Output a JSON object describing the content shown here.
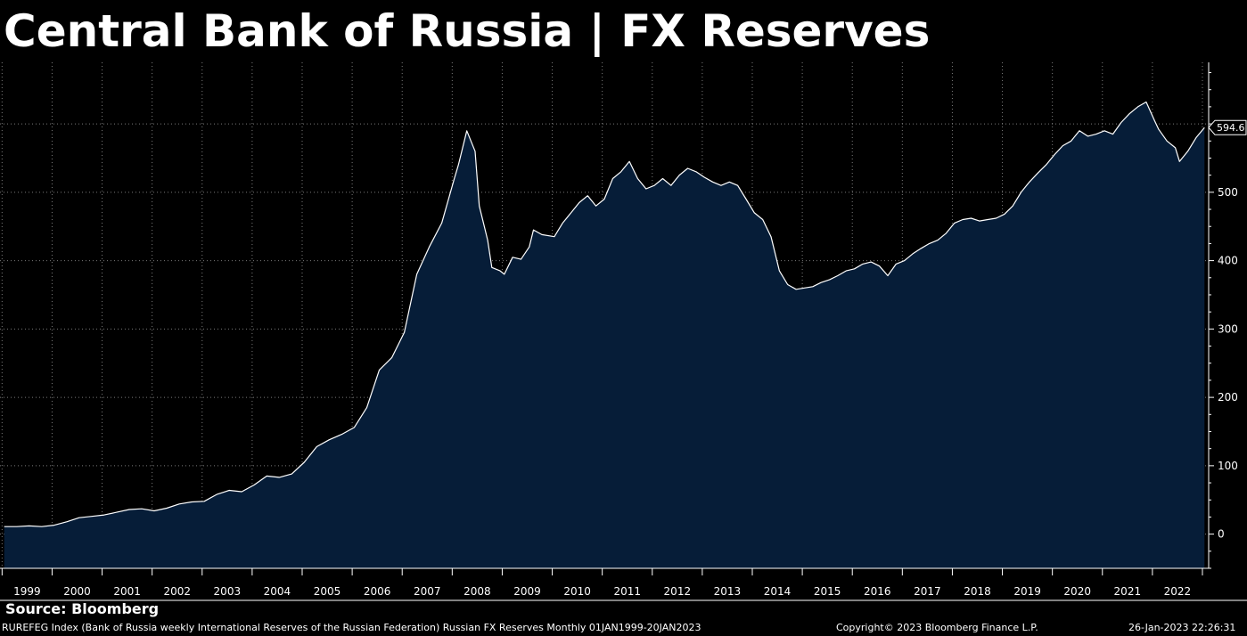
{
  "title": "Central Bank of Russia | FX Reserves",
  "source": "Source: Bloomberg",
  "footer": {
    "description": "RUREFEG Index (Bank of Russia weekly International Reserves of the Russian Federation) Russian FX Reserves  Monthly 01JAN1999-20JAN2023",
    "copyright": "Copyright© 2023 Bloomberg Finance L.P.",
    "datetime": "26-Jan-2023 22:26:31"
  },
  "colors": {
    "background": "#000000",
    "area_fill": "#061d38",
    "line": "#ffffff",
    "grid": "#7a7a7a",
    "text": "#ffffff"
  },
  "chart_data": {
    "type": "area",
    "title": "",
    "xlabel": "",
    "ylabel": "",
    "ylim": [
      -50,
      690
    ],
    "xlim": [
      "1998-12",
      "2023-02"
    ],
    "y_ticks": [
      0,
      100,
      200,
      300,
      400,
      500
    ],
    "x_tick_labels": [
      "1999",
      "2000",
      "2001",
      "2002",
      "2003",
      "2004",
      "2005",
      "2006",
      "2007",
      "2008",
      "2009",
      "2010",
      "2011",
      "2012",
      "2013",
      "2014",
      "2015",
      "2016",
      "2017",
      "2018",
      "2019",
      "2020",
      "2021",
      "2022"
    ],
    "grid": true,
    "axis_side": "right",
    "last_value_label": "594.6",
    "series": [
      {
        "points": [
          [
            "1999-01",
            11
          ],
          [
            "1999-04",
            11
          ],
          [
            "1999-07",
            12
          ],
          [
            "1999-10",
            11
          ],
          [
            "2000-01",
            13
          ],
          [
            "2000-04",
            18
          ],
          [
            "2000-07",
            24
          ],
          [
            "2000-10",
            26
          ],
          [
            "2001-01",
            28
          ],
          [
            "2001-04",
            32
          ],
          [
            "2001-07",
            36
          ],
          [
            "2001-10",
            37
          ],
          [
            "2002-01",
            34
          ],
          [
            "2002-04",
            38
          ],
          [
            "2002-07",
            44
          ],
          [
            "2002-10",
            47
          ],
          [
            "2003-01",
            48
          ],
          [
            "2003-04",
            58
          ],
          [
            "2003-07",
            64
          ],
          [
            "2003-10",
            62
          ],
          [
            "2004-01",
            72
          ],
          [
            "2004-04",
            85
          ],
          [
            "2004-07",
            83
          ],
          [
            "2004-10",
            88
          ],
          [
            "2005-01",
            105
          ],
          [
            "2005-04",
            128
          ],
          [
            "2005-07",
            138
          ],
          [
            "2005-10",
            146
          ],
          [
            "2006-01",
            156
          ],
          [
            "2006-04",
            185
          ],
          [
            "2006-07",
            240
          ],
          [
            "2006-10",
            258
          ],
          [
            "2007-01",
            295
          ],
          [
            "2007-04",
            380
          ],
          [
            "2007-07",
            420
          ],
          [
            "2007-10",
            455
          ],
          [
            "2008-01",
            520
          ],
          [
            "2008-02",
            540
          ],
          [
            "2008-04",
            590
          ],
          [
            "2008-06",
            560
          ],
          [
            "2008-07",
            480
          ],
          [
            "2008-09",
            430
          ],
          [
            "2008-10",
            390
          ],
          [
            "2008-12",
            385
          ],
          [
            "2009-01",
            380
          ],
          [
            "2009-03",
            405
          ],
          [
            "2009-05",
            402
          ],
          [
            "2009-07",
            420
          ],
          [
            "2009-08",
            445
          ],
          [
            "2009-10",
            438
          ],
          [
            "2010-01",
            435
          ],
          [
            "2010-03",
            455
          ],
          [
            "2010-05",
            470
          ],
          [
            "2010-07",
            485
          ],
          [
            "2010-09",
            495
          ],
          [
            "2010-11",
            480
          ],
          [
            "2011-01",
            490
          ],
          [
            "2011-03",
            520
          ],
          [
            "2011-05",
            530
          ],
          [
            "2011-07",
            545
          ],
          [
            "2011-09",
            520
          ],
          [
            "2011-11",
            505
          ],
          [
            "2012-01",
            510
          ],
          [
            "2012-03",
            520
          ],
          [
            "2012-05",
            510
          ],
          [
            "2012-07",
            525
          ],
          [
            "2012-09",
            535
          ],
          [
            "2012-11",
            530
          ],
          [
            "2013-01",
            522
          ],
          [
            "2013-03",
            515
          ],
          [
            "2013-05",
            510
          ],
          [
            "2013-07",
            515
          ],
          [
            "2013-09",
            510
          ],
          [
            "2013-11",
            490
          ],
          [
            "2014-01",
            470
          ],
          [
            "2014-03",
            460
          ],
          [
            "2014-05",
            435
          ],
          [
            "2014-07",
            385
          ],
          [
            "2014-09",
            365
          ],
          [
            "2014-11",
            358
          ],
          [
            "2015-01",
            360
          ],
          [
            "2015-03",
            362
          ],
          [
            "2015-05",
            368
          ],
          [
            "2015-07",
            372
          ],
          [
            "2015-09",
            378
          ],
          [
            "2015-11",
            385
          ],
          [
            "2016-01",
            388
          ],
          [
            "2016-03",
            395
          ],
          [
            "2016-05",
            398
          ],
          [
            "2016-07",
            392
          ],
          [
            "2016-09",
            378
          ],
          [
            "2016-11",
            395
          ],
          [
            "2017-01",
            400
          ],
          [
            "2017-03",
            410
          ],
          [
            "2017-05",
            418
          ],
          [
            "2017-07",
            425
          ],
          [
            "2017-09",
            430
          ],
          [
            "2017-11",
            440
          ],
          [
            "2018-01",
            455
          ],
          [
            "2018-03",
            460
          ],
          [
            "2018-05",
            462
          ],
          [
            "2018-07",
            458
          ],
          [
            "2018-09",
            460
          ],
          [
            "2018-11",
            462
          ],
          [
            "2019-01",
            468
          ],
          [
            "2019-03",
            480
          ],
          [
            "2019-05",
            500
          ],
          [
            "2019-07",
            515
          ],
          [
            "2019-09",
            528
          ],
          [
            "2019-11",
            540
          ],
          [
            "2020-01",
            555
          ],
          [
            "2020-03",
            568
          ],
          [
            "2020-05",
            575
          ],
          [
            "2020-07",
            590
          ],
          [
            "2020-09",
            582
          ],
          [
            "2020-11",
            585
          ],
          [
            "2021-01",
            590
          ],
          [
            "2021-03",
            585
          ],
          [
            "2021-05",
            602
          ],
          [
            "2021-07",
            615
          ],
          [
            "2021-09",
            625
          ],
          [
            "2021-11",
            632
          ],
          [
            "2022-01",
            605
          ],
          [
            "2022-02",
            592
          ],
          [
            "2022-04",
            575
          ],
          [
            "2022-06",
            565
          ],
          [
            "2022-07",
            545
          ],
          [
            "2022-09",
            560
          ],
          [
            "2022-11",
            580
          ],
          [
            "2023-01",
            594.6
          ]
        ]
      }
    ]
  }
}
